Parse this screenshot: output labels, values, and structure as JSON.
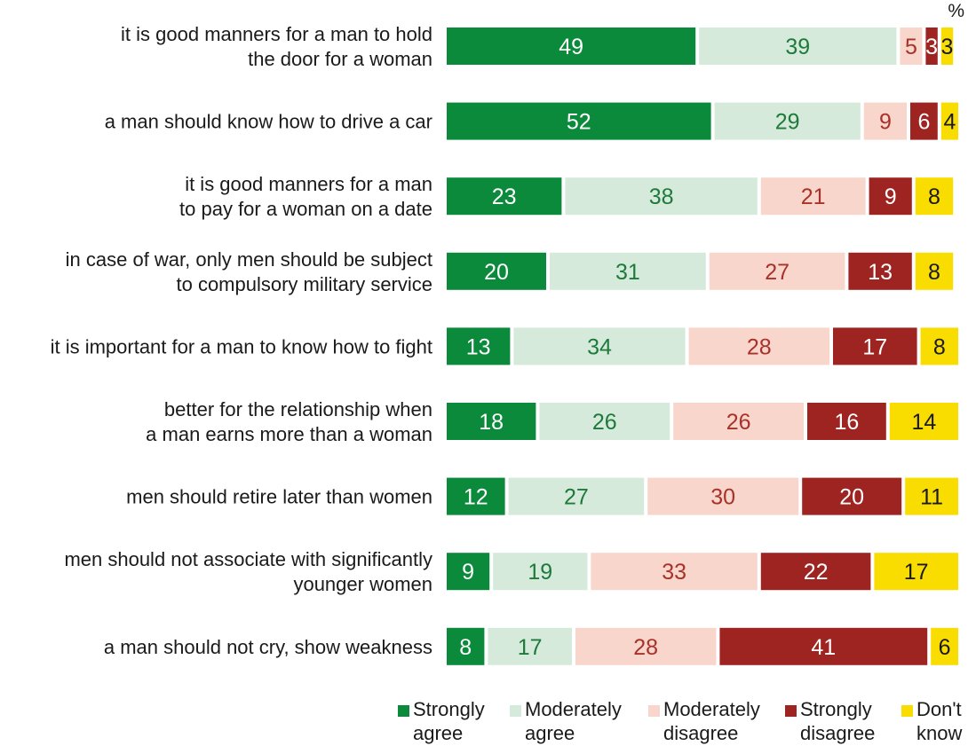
{
  "chart_data": {
    "type": "bar",
    "orientation": "horizontal",
    "stacked": true,
    "unit": "%",
    "categories": [
      [
        "it is good manners for a man to hold",
        "the door for a woman"
      ],
      [
        "a man should know how to drive a car"
      ],
      [
        "it is good manners for a man",
        "to pay for a woman on a date"
      ],
      [
        "in case of war, only men should be subject",
        "to compulsory military service"
      ],
      [
        "it is important for a man to know how to fight"
      ],
      [
        "better for the relationship when",
        "a man earns more than a woman"
      ],
      [
        "men should retire later than women"
      ],
      [
        "men should not associate with significantly",
        "younger women"
      ],
      [
        "a man should not cry, show weakness"
      ]
    ],
    "series": [
      {
        "name": "Strongly agree",
        "color": "#0a8a3a",
        "label_color": "#ffffff",
        "values": [
          49,
          52,
          23,
          20,
          13,
          18,
          12,
          9,
          8
        ]
      },
      {
        "name": "Moderately agree",
        "color": "#d6eadb",
        "label_color": "#1d7a3a",
        "values": [
          39,
          29,
          38,
          31,
          34,
          26,
          27,
          19,
          17
        ]
      },
      {
        "name": "Moderately disagree",
        "color": "#f8d6cc",
        "label_color": "#a8322a",
        "values": [
          5,
          9,
          21,
          27,
          28,
          26,
          30,
          33,
          28
        ]
      },
      {
        "name": "Strongly disagree",
        "color": "#9e2422",
        "label_color": "#ffffff",
        "values": [
          3,
          6,
          9,
          13,
          17,
          16,
          20,
          22,
          41
        ]
      },
      {
        "name": "Don't know",
        "color": "#f9dc00",
        "label_color": "#1a1a1a",
        "values": [
          3,
          4,
          8,
          8,
          8,
          14,
          11,
          17,
          6
        ]
      }
    ],
    "legend": [
      {
        "text": "Strongly\nagree",
        "color": "#0a8a3a"
      },
      {
        "text": "Moderately\nagree",
        "color": "#d6eadb"
      },
      {
        "text": "Moderately\ndisagree",
        "color": "#f8d6cc"
      },
      {
        "text": "Strongly\ndisagree",
        "color": "#9e2422"
      },
      {
        "text": "Don't\nknow",
        "color": "#f9dc00"
      }
    ],
    "legend_position": "bottom",
    "xlim": [
      0,
      100
    ],
    "grid": false
  }
}
